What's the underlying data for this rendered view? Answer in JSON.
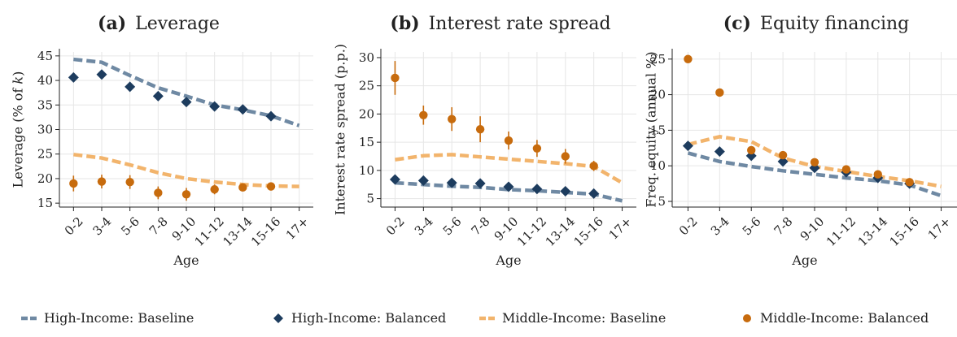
{
  "colors": {
    "high_income": "#6f89a3",
    "high_income_marker": "#1d3c5e",
    "middle_income": "#f2b46c",
    "middle_income_marker": "#c76b0d",
    "grid": "#e6e6e6"
  },
  "legend": {
    "position": "bottom",
    "items": [
      {
        "label": "High-Income: Baseline",
        "style": "dashed-line",
        "color_key": "high_income"
      },
      {
        "label": "High-Income: Balanced",
        "style": "diamond",
        "color_key": "high_income_marker"
      },
      {
        "label": "Middle-Income: Baseline",
        "style": "dashed-line",
        "color_key": "middle_income"
      },
      {
        "label": "Middle-Income: Balanced",
        "style": "circle",
        "color_key": "middle_income_marker"
      }
    ]
  },
  "chart_data": [
    {
      "type": "line",
      "panel_label": "(a)",
      "title": "Leverage",
      "xlabel": "Age",
      "ylabel": "Leverage (% of k)",
      "ylabel_parts": {
        "before": "Leverage (% of ",
        "italic": "k",
        "after": ")"
      },
      "categories": [
        "0-2",
        "3-4",
        "5-6",
        "7-8",
        "9-10",
        "11-12",
        "13-14",
        "15-16",
        "17+"
      ],
      "ylim": [
        14.2,
        45.8
      ],
      "yticks": [
        15,
        20,
        25,
        30,
        35,
        40,
        45
      ],
      "grid": true,
      "series": [
        {
          "name": "High-Income: Baseline",
          "kind": "baseline",
          "color_key": "high_income",
          "values": [
            44.3,
            43.7,
            41.0,
            38.5,
            36.8,
            35.0,
            34.0,
            32.8,
            30.8
          ]
        },
        {
          "name": "High-Income: Balanced",
          "kind": "balanced",
          "marker": "diamond",
          "color_key": "high_income_marker",
          "values": [
            40.6,
            41.2,
            38.7,
            36.8,
            35.6,
            34.7,
            34.1,
            32.7,
            null
          ],
          "errors": [
            0.3,
            0.3,
            0.3,
            0.3,
            0.3,
            0.3,
            0.3,
            0.3,
            null
          ]
        },
        {
          "name": "Middle-Income: Baseline",
          "kind": "baseline",
          "color_key": "middle_income",
          "values": [
            24.9,
            24.2,
            22.8,
            21.2,
            20.0,
            19.3,
            18.8,
            18.5,
            18.4
          ]
        },
        {
          "name": "Middle-Income: Balanced",
          "kind": "balanced",
          "marker": "circle",
          "color_key": "middle_income_marker",
          "values": [
            19.0,
            19.4,
            19.3,
            17.1,
            16.8,
            17.8,
            18.2,
            18.4,
            null
          ],
          "errors": [
            1.6,
            1.4,
            1.4,
            1.3,
            1.3,
            1.0,
            0.7,
            0.4,
            null
          ]
        }
      ]
    },
    {
      "type": "line",
      "panel_label": "(b)",
      "title": "Interest rate spread",
      "xlabel": "Age",
      "ylabel": "Interest rate spread (p.p.)",
      "categories": [
        "0-2",
        "3-4",
        "5-6",
        "7-8",
        "9-10",
        "11-12",
        "13-14",
        "15-16",
        "17+"
      ],
      "ylim": [
        3.5,
        31.0
      ],
      "yticks": [
        5,
        10,
        15,
        20,
        25,
        30
      ],
      "grid": true,
      "series": [
        {
          "name": "High-Income: Baseline",
          "kind": "baseline",
          "color_key": "high_income",
          "values": [
            7.8,
            7.5,
            7.2,
            7.0,
            6.6,
            6.4,
            6.1,
            5.8,
            4.6
          ]
        },
        {
          "name": "High-Income: Balanced",
          "kind": "balanced",
          "marker": "diamond",
          "color_key": "high_income_marker",
          "values": [
            8.4,
            8.2,
            7.8,
            7.7,
            7.1,
            6.7,
            6.3,
            5.9,
            null
          ],
          "errors": [
            0.3,
            0.3,
            0.3,
            0.3,
            0.3,
            0.3,
            0.3,
            0.3,
            null
          ]
        },
        {
          "name": "Middle-Income: Baseline",
          "kind": "baseline",
          "color_key": "middle_income",
          "values": [
            11.9,
            12.6,
            12.8,
            12.4,
            12.0,
            11.6,
            11.2,
            10.7,
            7.8
          ]
        },
        {
          "name": "Middle-Income: Balanced",
          "kind": "balanced",
          "marker": "circle",
          "color_key": "middle_income_marker",
          "values": [
            26.4,
            19.8,
            19.1,
            17.3,
            15.3,
            13.9,
            12.5,
            10.8,
            null
          ],
          "errors": [
            3.0,
            1.7,
            2.1,
            2.3,
            1.6,
            1.5,
            1.3,
            0.9,
            null
          ]
        }
      ]
    },
    {
      "type": "line",
      "panel_label": "(c)",
      "title": "Equity financing",
      "xlabel": "Age",
      "ylabel": "Freq. equity (annual %)",
      "categories": [
        "0-2",
        "3-4",
        "5-6",
        "7-8",
        "9-10",
        "11-12",
        "13-14",
        "15-16",
        "17+"
      ],
      "ylim": [
        4.2,
        26.0
      ],
      "yticks": [
        5,
        10,
        15,
        20,
        25
      ],
      "grid": true,
      "series": [
        {
          "name": "High-Income: Baseline",
          "kind": "baseline",
          "color_key": "high_income",
          "values": [
            11.8,
            10.6,
            9.9,
            9.3,
            8.8,
            8.3,
            7.9,
            7.3,
            5.8
          ]
        },
        {
          "name": "High-Income: Balanced",
          "kind": "balanced",
          "marker": "diamond",
          "color_key": "high_income_marker",
          "values": [
            12.8,
            12.0,
            11.4,
            10.6,
            9.7,
            9.1,
            8.3,
            7.5,
            null
          ],
          "errors": [
            0.2,
            0.2,
            0.2,
            0.2,
            0.2,
            0.2,
            0.2,
            0.2,
            null
          ]
        },
        {
          "name": "Middle-Income: Baseline",
          "kind": "baseline",
          "color_key": "middle_income",
          "values": [
            13.0,
            14.1,
            13.4,
            11.1,
            9.9,
            9.2,
            8.5,
            7.9,
            7.1
          ]
        },
        {
          "name": "Middle-Income: Balanced",
          "kind": "balanced",
          "marker": "circle",
          "color_key": "middle_income_marker",
          "values": [
            25.0,
            20.3,
            12.2,
            11.5,
            10.5,
            9.5,
            8.8,
            7.7,
            null
          ],
          "errors": [
            0.2,
            0.2,
            0.3,
            0.3,
            0.3,
            0.3,
            0.3,
            0.3,
            null
          ]
        }
      ]
    }
  ]
}
